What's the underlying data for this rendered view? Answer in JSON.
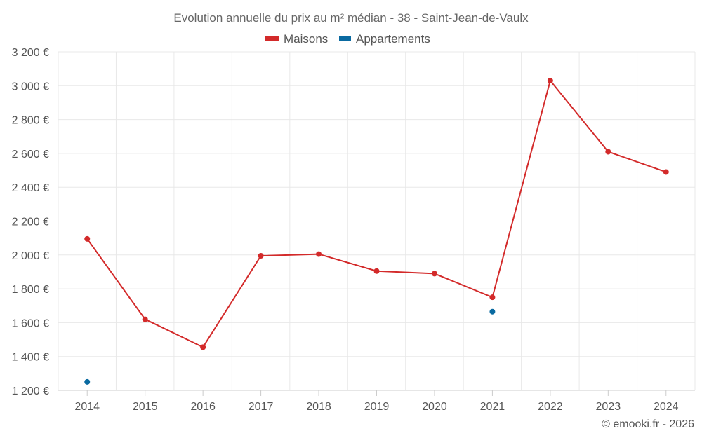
{
  "chart_data": {
    "type": "line",
    "title": "Evolution annuelle du prix au m² médian - 38 - Saint-Jean-de-Vaulx",
    "categories": [
      "2014",
      "2015",
      "2016",
      "2017",
      "2018",
      "2019",
      "2020",
      "2021",
      "2022",
      "2023",
      "2024"
    ],
    "series": [
      {
        "name": "Maisons",
        "color": "#d32a2a",
        "values": [
          2095,
          1620,
          1455,
          1995,
          2005,
          1905,
          1890,
          1750,
          3030,
          2610,
          2490
        ]
      },
      {
        "name": "Appartements",
        "color": "#0a6aa1",
        "values": [
          1250,
          null,
          null,
          null,
          null,
          null,
          null,
          1665,
          null,
          null,
          null
        ]
      }
    ],
    "ylim": [
      1200,
      3200
    ],
    "yticks": [
      1200,
      1400,
      1600,
      1800,
      2000,
      2200,
      2400,
      2600,
      2800,
      3000,
      3200
    ],
    "ytick_labels": [
      "1 200 €",
      "1 400 €",
      "1 600 €",
      "1 800 €",
      "2 000 €",
      "2 200 €",
      "2 400 €",
      "2 600 €",
      "2 800 €",
      "3 000 €",
      "3 200 €"
    ],
    "grid": true,
    "legend_position": "top-center",
    "credit": "© emooki.fr - 2026"
  }
}
